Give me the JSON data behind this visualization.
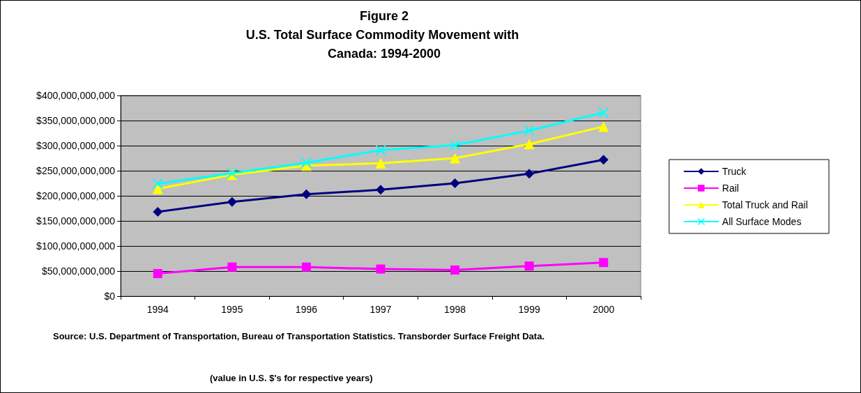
{
  "chart_data": {
    "type": "line",
    "title": "Figure 2",
    "subtitle": "U.S. Total Surface Commodity Movement with Canada: 1994-2000",
    "categories": [
      "1994",
      "1995",
      "1996",
      "1997",
      "1998",
      "1999",
      "2000"
    ],
    "series": [
      {
        "name": "Truck",
        "color": "#000080",
        "marker": "diamond",
        "values": [
          168000000000,
          188000000000,
          203000000000,
          212000000000,
          225000000000,
          244000000000,
          272000000000
        ]
      },
      {
        "name": "Rail",
        "color": "#ff00ff",
        "marker": "square",
        "values": [
          45000000000,
          58000000000,
          58000000000,
          54000000000,
          52000000000,
          60000000000,
          67000000000
        ]
      },
      {
        "name": "Total Truck and Rail",
        "color": "#ffff00",
        "marker": "triangle",
        "values": [
          214000000000,
          242000000000,
          260000000000,
          265000000000,
          275000000000,
          303000000000,
          338000000000
        ]
      },
      {
        "name": "All Surface Modes",
        "color": "#00ffff",
        "marker": "cross",
        "values": [
          224000000000,
          245000000000,
          266000000000,
          291000000000,
          301000000000,
          330000000000,
          366000000000
        ]
      }
    ],
    "ylim": [
      0,
      400000000000
    ],
    "yticks": [
      {
        "value": 0,
        "label": "$0"
      },
      {
        "value": 50000000000,
        "label": "$50,000,000,000"
      },
      {
        "value": 100000000000,
        "label": "$100,000,000,000"
      },
      {
        "value": 150000000000,
        "label": "$150,000,000,000"
      },
      {
        "value": 200000000000,
        "label": "$200,000,000,000"
      },
      {
        "value": 250000000000,
        "label": "$250,000,000,000"
      },
      {
        "value": 300000000000,
        "label": "$300,000,000,000"
      },
      {
        "value": 350000000000,
        "label": "$350,000,000,000"
      },
      {
        "value": 400000000000,
        "label": "$400,000,000,000"
      }
    ],
    "grid": "y",
    "legend": "right",
    "line_style": "solid",
    "annotations": [
      "Source: U.S. Department of Transportation, Bureau of Transportation Statistics. Transborder Surface Freight Data.",
      "(value in U.S. $'s for respective years)"
    ]
  }
}
